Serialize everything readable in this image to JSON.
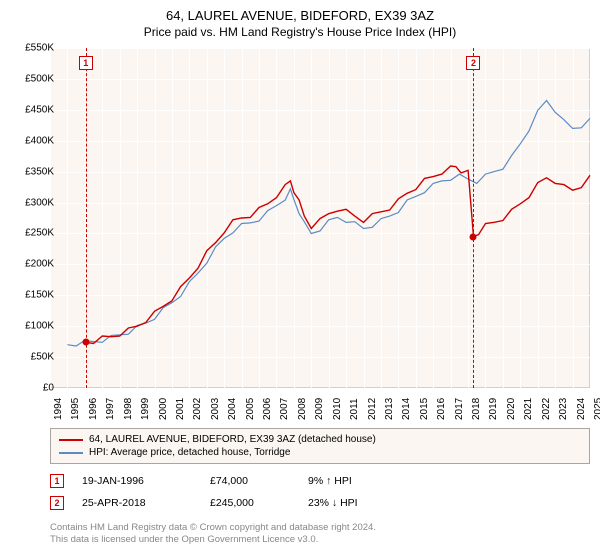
{
  "header": {
    "title": "64, LAUREL AVENUE, BIDEFORD, EX39 3AZ",
    "subtitle": "Price paid vs. HM Land Registry's House Price Index (HPI)"
  },
  "chart": {
    "type": "line",
    "background_color": "#fbf6f1",
    "grid_color": "#ffffff",
    "border_color": "#d3cfcb",
    "x_range": [
      1994,
      2025
    ],
    "y_range": [
      0,
      550
    ],
    "y_ticks": [
      0,
      50,
      100,
      150,
      200,
      250,
      300,
      350,
      400,
      450,
      500,
      550
    ],
    "y_tick_labels": [
      "£0",
      "£50K",
      "£100K",
      "£150K",
      "£200K",
      "£250K",
      "£300K",
      "£350K",
      "£400K",
      "£450K",
      "£500K",
      "£550K"
    ],
    "x_ticks": [
      1994,
      1995,
      1996,
      1997,
      1998,
      1999,
      2000,
      2001,
      2002,
      2003,
      2004,
      2005,
      2006,
      2007,
      2008,
      2009,
      2010,
      2011,
      2012,
      2013,
      2014,
      2015,
      2016,
      2017,
      2018,
      2019,
      2020,
      2021,
      2022,
      2023,
      2024,
      2025
    ],
    "series": [
      {
        "name": "property",
        "label": "64, LAUREL AVENUE, BIDEFORD, EX39 3AZ (detached house)",
        "color": "#cc0000",
        "width": 1.4,
        "data": [
          [
            1996.05,
            74
          ],
          [
            1996.5,
            76
          ],
          [
            1997,
            80
          ],
          [
            1997.5,
            83
          ],
          [
            1998,
            88
          ],
          [
            1998.5,
            93
          ],
          [
            1999,
            100
          ],
          [
            1999.5,
            110
          ],
          [
            2000,
            120
          ],
          [
            2000.5,
            132
          ],
          [
            2001,
            145
          ],
          [
            2001.5,
            160
          ],
          [
            2002,
            178
          ],
          [
            2002.5,
            198
          ],
          [
            2003,
            218
          ],
          [
            2003.5,
            235
          ],
          [
            2004,
            255
          ],
          [
            2004.5,
            268
          ],
          [
            2005,
            275
          ],
          [
            2005.5,
            280
          ],
          [
            2006,
            288
          ],
          [
            2006.5,
            298
          ],
          [
            2007,
            312
          ],
          [
            2007.5,
            325
          ],
          [
            2007.8,
            335
          ],
          [
            2008,
            320
          ],
          [
            2008.3,
            300
          ],
          [
            2008.6,
            278
          ],
          [
            2009,
            262
          ],
          [
            2009.5,
            270
          ],
          [
            2010,
            282
          ],
          [
            2010.5,
            290
          ],
          [
            2011,
            285
          ],
          [
            2011.5,
            278
          ],
          [
            2012,
            272
          ],
          [
            2012.5,
            278
          ],
          [
            2013,
            285
          ],
          [
            2013.5,
            292
          ],
          [
            2014,
            302
          ],
          [
            2014.5,
            315
          ],
          [
            2015,
            325
          ],
          [
            2015.5,
            335
          ],
          [
            2016,
            342
          ],
          [
            2016.5,
            350
          ],
          [
            2017,
            355
          ],
          [
            2017.3,
            358
          ],
          [
            2017.6,
            352
          ],
          [
            2018,
            348
          ],
          [
            2018.31,
            245
          ],
          [
            2018.6,
            252
          ],
          [
            2019,
            262
          ],
          [
            2019.5,
            268
          ],
          [
            2020,
            275
          ],
          [
            2020.5,
            285
          ],
          [
            2021,
            298
          ],
          [
            2021.5,
            312
          ],
          [
            2022,
            328
          ],
          [
            2022.5,
            340
          ],
          [
            2023,
            335
          ],
          [
            2023.5,
            325
          ],
          [
            2024,
            320
          ],
          [
            2024.5,
            328
          ],
          [
            2025,
            340
          ]
        ]
      },
      {
        "name": "hpi",
        "label": "HPI: Average price, detached house, Torridge",
        "color": "#5b8bc4",
        "width": 1.2,
        "data": [
          [
            1995,
            70
          ],
          [
            1995.5,
            72
          ],
          [
            1996,
            73
          ],
          [
            1996.5,
            75
          ],
          [
            1997,
            78
          ],
          [
            1997.5,
            81
          ],
          [
            1998,
            86
          ],
          [
            1998.5,
            91
          ],
          [
            1999,
            97
          ],
          [
            1999.5,
            105
          ],
          [
            2000,
            115
          ],
          [
            2000.5,
            126
          ],
          [
            2001,
            138
          ],
          [
            2001.5,
            152
          ],
          [
            2002,
            168
          ],
          [
            2002.5,
            186
          ],
          [
            2003,
            206
          ],
          [
            2003.5,
            224
          ],
          [
            2004,
            242
          ],
          [
            2004.5,
            255
          ],
          [
            2005,
            262
          ],
          [
            2005.5,
            267
          ],
          [
            2006,
            274
          ],
          [
            2006.5,
            283
          ],
          [
            2007,
            295
          ],
          [
            2007.5,
            308
          ],
          [
            2007.8,
            318
          ],
          [
            2008,
            305
          ],
          [
            2008.3,
            286
          ],
          [
            2008.6,
            265
          ],
          [
            2009,
            250
          ],
          [
            2009.5,
            258
          ],
          [
            2010,
            268
          ],
          [
            2010.5,
            276
          ],
          [
            2011,
            272
          ],
          [
            2011.5,
            265
          ],
          [
            2012,
            258
          ],
          [
            2012.5,
            264
          ],
          [
            2013,
            270
          ],
          [
            2013.5,
            278
          ],
          [
            2014,
            288
          ],
          [
            2014.5,
            300
          ],
          [
            2015,
            310
          ],
          [
            2015.5,
            320
          ],
          [
            2016,
            327
          ],
          [
            2016.5,
            335
          ],
          [
            2017,
            340
          ],
          [
            2017.5,
            342
          ],
          [
            2018,
            338
          ],
          [
            2018.5,
            335
          ],
          [
            2019,
            342
          ],
          [
            2019.5,
            350
          ],
          [
            2020,
            358
          ],
          [
            2020.5,
            372
          ],
          [
            2021,
            395
          ],
          [
            2021.5,
            420
          ],
          [
            2022,
            445
          ],
          [
            2022.5,
            465
          ],
          [
            2023,
            450
          ],
          [
            2023.5,
            430
          ],
          [
            2024,
            420
          ],
          [
            2024.5,
            425
          ],
          [
            2025,
            432
          ]
        ]
      }
    ],
    "sale_markers": [
      {
        "num": "1",
        "year": 1996.05,
        "price": 74
      },
      {
        "num": "2",
        "year": 2018.31,
        "price": 245
      }
    ]
  },
  "legend": {
    "items": [
      {
        "color": "#cc0000",
        "label": "64, LAUREL AVENUE, BIDEFORD, EX39 3AZ (detached house)"
      },
      {
        "color": "#5b8bc4",
        "label": "HPI: Average price, detached house, Torridge"
      }
    ]
  },
  "transactions": [
    {
      "num": "1",
      "date": "19-JAN-1996",
      "price": "£74,000",
      "pct": "9% ↑ HPI"
    },
    {
      "num": "2",
      "date": "25-APR-2018",
      "price": "£245,000",
      "pct": "23% ↓ HPI"
    }
  ],
  "footer": {
    "line1": "Contains HM Land Registry data © Crown copyright and database right 2024.",
    "line2": "This data is licensed under the Open Government Licence v3.0."
  }
}
